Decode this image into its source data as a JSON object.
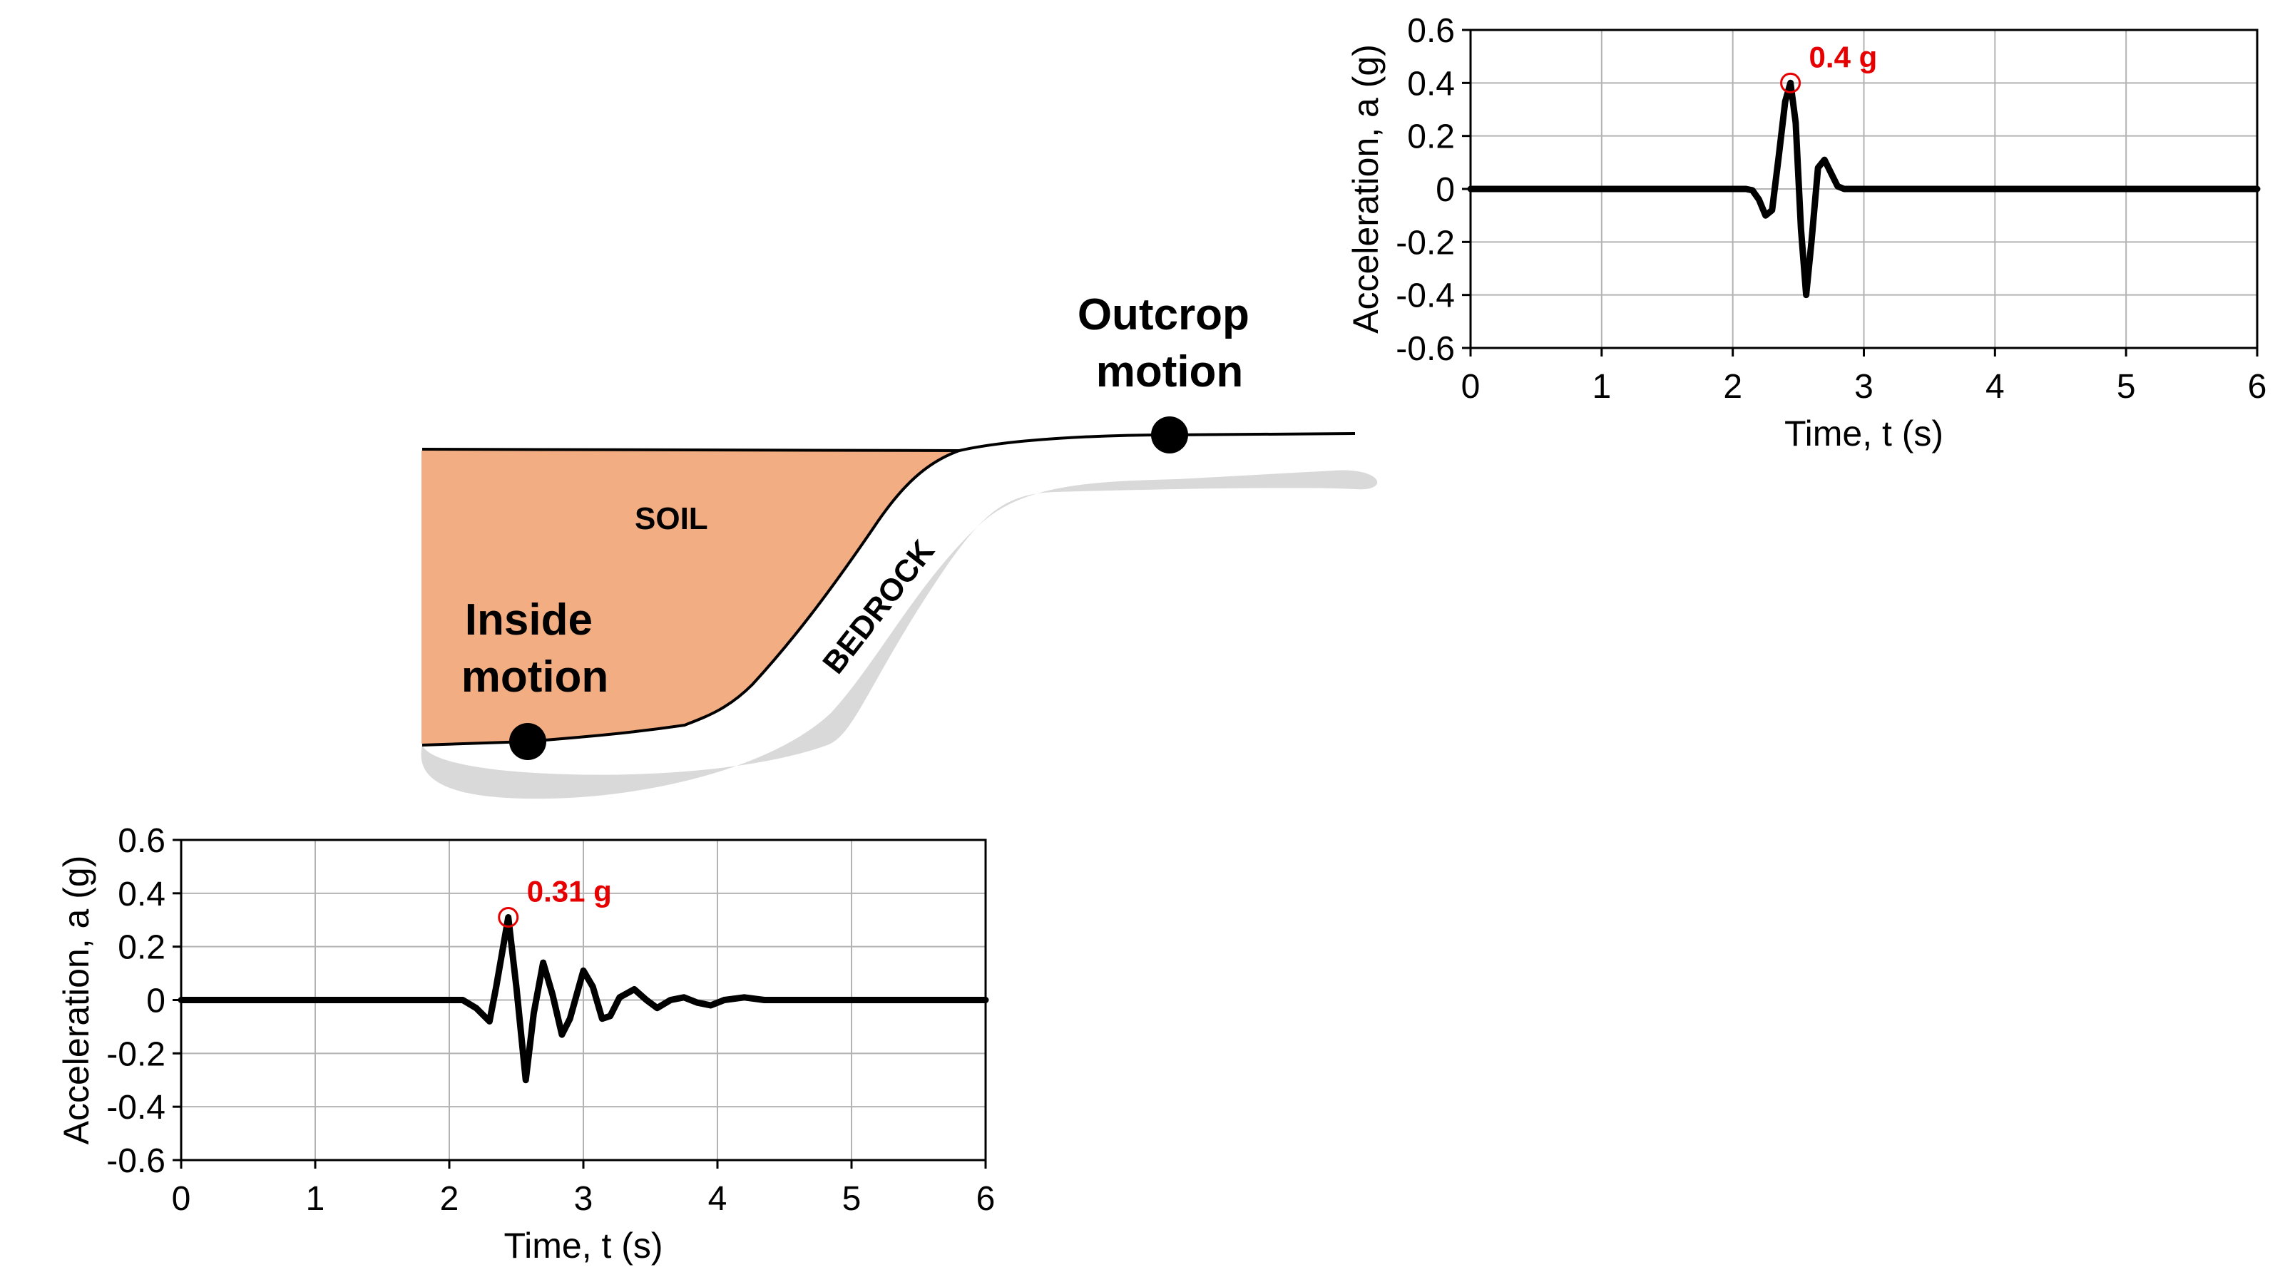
{
  "colors": {
    "soil": "#f2ae82",
    "bedrock": "#d9d9d9",
    "grid": "#b3b3b3",
    "peak": "#e60000",
    "trace": "#000000"
  },
  "diagram": {
    "soil_label": "SOIL",
    "bedrock_label": "BEDROCK",
    "outcrop_label_line1": "Outcrop",
    "outcrop_label_line2": "motion",
    "inside_label_line1": "Inside",
    "inside_label_line2": "motion"
  },
  "chart_data": [
    {
      "type": "line",
      "id": "outcrop",
      "xlabel": "Time, t (s)",
      "ylabel": "Acceleration, a (g)",
      "xlim": [
        0,
        6
      ],
      "ylim": [
        -0.6,
        0.6
      ],
      "xticks": [
        "0",
        "1",
        "2",
        "3",
        "4",
        "5",
        "6"
      ],
      "yticks": [
        "0.6",
        "0.4",
        "0.2",
        "0",
        "-0.2",
        "-0.4",
        "-0.6"
      ],
      "grid": true,
      "peak_label": "0.4 g",
      "peak": {
        "x": 2.44,
        "y": 0.4
      },
      "series": [
        {
          "x": [
            0,
            2.0,
            2.1,
            2.15,
            2.2,
            2.25,
            2.3,
            2.35,
            2.4,
            2.44,
            2.48,
            2.52,
            2.56,
            2.6,
            2.65,
            2.7,
            2.75,
            2.8,
            2.85,
            2.9,
            3.0,
            6
          ],
          "y": [
            0,
            0,
            0,
            -0.005,
            -0.04,
            -0.1,
            -0.08,
            0.12,
            0.33,
            0.4,
            0.25,
            -0.15,
            -0.4,
            -0.2,
            0.08,
            0.11,
            0.06,
            0.01,
            0,
            0,
            0,
            0
          ]
        }
      ]
    },
    {
      "type": "line",
      "id": "inside",
      "xlabel": "Time, t (s)",
      "ylabel": "Acceleration, a (g)",
      "xlim": [
        0,
        6
      ],
      "ylim": [
        -0.6,
        0.6
      ],
      "xticks": [
        "0",
        "1",
        "2",
        "3",
        "4",
        "5",
        "6"
      ],
      "yticks": [
        "0.6",
        "0.4",
        "0.2",
        "0",
        "-0.2",
        "-0.4",
        "-0.6"
      ],
      "grid": true,
      "peak_label": "0.31 g",
      "peak": {
        "x": 2.44,
        "y": 0.31
      },
      "series": [
        {
          "x": [
            0,
            2.0,
            2.1,
            2.2,
            2.3,
            2.35,
            2.44,
            2.5,
            2.57,
            2.63,
            2.7,
            2.77,
            2.84,
            2.9,
            3.0,
            3.07,
            3.14,
            3.2,
            3.27,
            3.38,
            3.47,
            3.55,
            3.65,
            3.75,
            3.85,
            3.95,
            4.05,
            4.2,
            4.35,
            4.45,
            6
          ],
          "y": [
            0,
            0,
            0,
            -0.03,
            -0.08,
            0.05,
            0.31,
            0.05,
            -0.3,
            -0.05,
            0.14,
            0.02,
            -0.13,
            -0.07,
            0.11,
            0.05,
            -0.07,
            -0.06,
            0.01,
            0.04,
            0.0,
            -0.03,
            0.0,
            0.01,
            -0.01,
            -0.02,
            0.0,
            0.01,
            0.0,
            0,
            0
          ]
        }
      ]
    }
  ]
}
